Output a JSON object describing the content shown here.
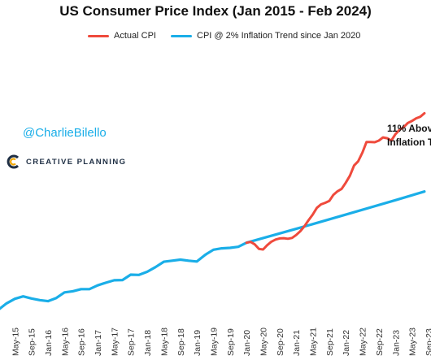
{
  "title": "US Consumer Price Index (Jan 2015 - Feb 2024)",
  "handle": "@CharlieBilello",
  "brand": {
    "name": "CREATIVE PLANNING",
    "logo_icon": "creative-planning-c-logo-icon"
  },
  "annotation": {
    "line1": "11% Abov",
    "line2": "Inflation T"
  },
  "colors": {
    "actual": "#ef4a3c",
    "trend": "#1aaee8",
    "brand_text": "#1f2f44",
    "handle": "#1aaee8"
  },
  "chart_data": {
    "type": "line",
    "title": "US Consumer Price Index (Jan 2015 - Feb 2024)",
    "xlabel": "",
    "ylabel": "",
    "grid": false,
    "legend_position": "top",
    "x_range": [
      "Jan 2015",
      "Aug 2023"
    ],
    "x_ticks": [
      "May-15",
      "Sep-15",
      "Jan-16",
      "May-16",
      "Sep-16",
      "Jan-17",
      "May-17",
      "Sep-17",
      "Jan-18",
      "May-18",
      "Sep-18",
      "Jan-19",
      "May-19",
      "Sep-19",
      "Jan-20",
      "May-20",
      "Sep-20",
      "Jan-21",
      "May-21",
      "Sep-21",
      "Jan-22",
      "May-22",
      "Sep-22",
      "Jan-23",
      "May-23",
      "Sep-23"
    ],
    "y_range": [
      228,
      325
    ],
    "series": [
      {
        "name": "Actual CPI",
        "color": "#ef4a3c",
        "points": [
          [
            "Jan-20",
            258.7
          ],
          [
            "Feb-20",
            259.0
          ],
          [
            "Mar-20",
            258.1
          ],
          [
            "Apr-20",
            256.4
          ],
          [
            "May-20",
            256.2
          ],
          [
            "Jun-20",
            257.8
          ],
          [
            "Jul-20",
            259.1
          ],
          [
            "Aug-20",
            259.9
          ],
          [
            "Sep-20",
            260.3
          ],
          [
            "Oct-20",
            260.4
          ],
          [
            "Nov-20",
            260.2
          ],
          [
            "Dec-20",
            260.5
          ],
          [
            "Jan-21",
            261.6
          ],
          [
            "Feb-21",
            263.0
          ],
          [
            "Mar-21",
            264.9
          ],
          [
            "Apr-21",
            267.1
          ],
          [
            "May-21",
            269.2
          ],
          [
            "Jun-21",
            271.7
          ],
          [
            "Jul-21",
            273.0
          ],
          [
            "Aug-21",
            273.6
          ],
          [
            "Sep-21",
            274.3
          ],
          [
            "Oct-21",
            276.6
          ],
          [
            "Nov-21",
            277.9
          ],
          [
            "Dec-21",
            278.8
          ],
          [
            "Jan-22",
            281.1
          ],
          [
            "Feb-22",
            283.7
          ],
          [
            "Mar-22",
            287.5
          ],
          [
            "Apr-22",
            289.1
          ],
          [
            "May-22",
            292.3
          ],
          [
            "Jun-22",
            296.3
          ],
          [
            "Jul-22",
            296.3
          ],
          [
            "Aug-22",
            296.2
          ],
          [
            "Sep-22",
            296.8
          ],
          [
            "Oct-22",
            298.0
          ],
          [
            "Nov-22",
            297.7
          ],
          [
            "Dec-22",
            296.8
          ],
          [
            "Jan-23",
            299.2
          ],
          [
            "Feb-23",
            300.8
          ],
          [
            "Mar-23",
            301.8
          ],
          [
            "Apr-23",
            303.4
          ],
          [
            "May-23",
            304.1
          ],
          [
            "Jun-23",
            305.1
          ],
          [
            "Jul-23",
            305.7
          ],
          [
            "Aug-23",
            307.0
          ]
        ]
      },
      {
        "name": "CPI @ 2% Inflation Trend since Jan 2020",
        "color": "#1aaee8",
        "points": [
          [
            "Jan-15",
            233.7
          ],
          [
            "Mar-15",
            236.1
          ],
          [
            "May-15",
            237.8
          ],
          [
            "Jul-15",
            238.7
          ],
          [
            "Sep-15",
            237.9
          ],
          [
            "Nov-15",
            237.3
          ],
          [
            "Jan-16",
            236.9
          ],
          [
            "Mar-16",
            238.1
          ],
          [
            "May-16",
            240.2
          ],
          [
            "Jul-16",
            240.6
          ],
          [
            "Sep-16",
            241.4
          ],
          [
            "Nov-16",
            241.4
          ],
          [
            "Jan-17",
            242.8
          ],
          [
            "Mar-17",
            243.8
          ],
          [
            "May-17",
            244.7
          ],
          [
            "Jul-17",
            244.8
          ],
          [
            "Sep-17",
            246.8
          ],
          [
            "Nov-17",
            246.7
          ],
          [
            "Jan-18",
            247.9
          ],
          [
            "Mar-18",
            249.6
          ],
          [
            "May-18",
            251.6
          ],
          [
            "Jul-18",
            252.0
          ],
          [
            "Sep-18",
            252.4
          ],
          [
            "Nov-18",
            252.0
          ],
          [
            "Jan-19",
            251.7
          ],
          [
            "Mar-19",
            254.2
          ],
          [
            "May-19",
            256.1
          ],
          [
            "Jul-19",
            256.6
          ],
          [
            "Sep-19",
            256.8
          ],
          [
            "Nov-19",
            257.2
          ],
          [
            "Jan-20",
            258.7
          ],
          [
            "Jan-21",
            263.9
          ],
          [
            "Jan-22",
            269.2
          ],
          [
            "Jan-23",
            274.6
          ],
          [
            "Aug-23",
            277.8
          ]
        ]
      }
    ]
  }
}
